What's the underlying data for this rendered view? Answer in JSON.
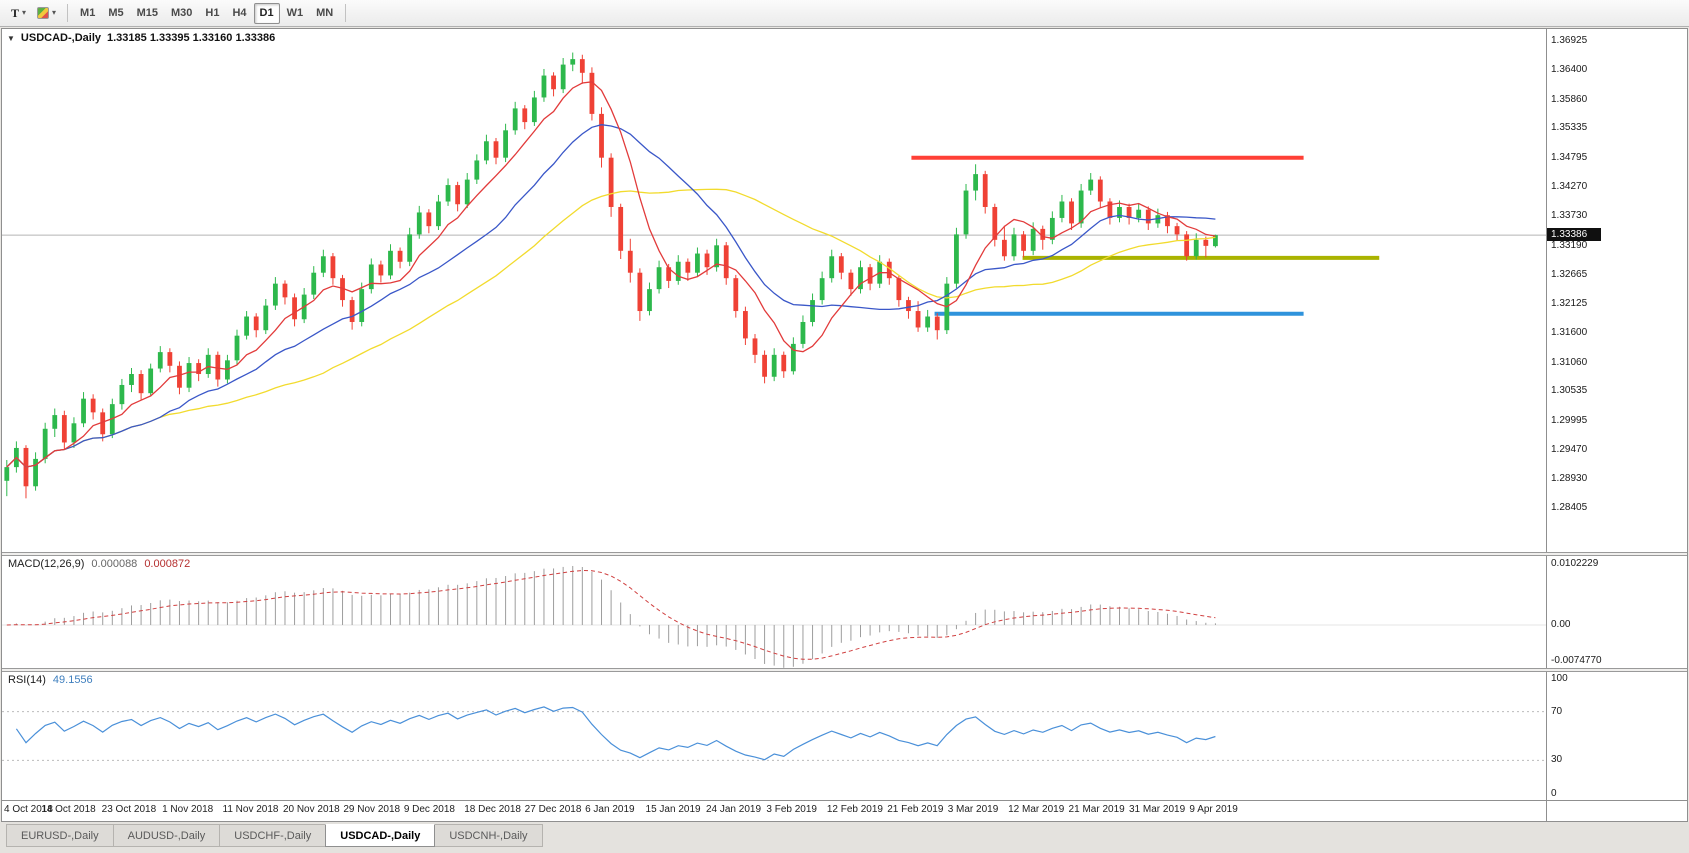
{
  "icons": {
    "caret": "▾",
    "collapse": "▼"
  },
  "toolbar": {
    "templates_glyph": "T",
    "timeframes": [
      "M1",
      "M5",
      "M15",
      "M30",
      "H1",
      "H4",
      "D1",
      "W1",
      "MN"
    ],
    "active_timeframe": "D1"
  },
  "chart": {
    "title": "USDCAD-,Daily",
    "ohlc": "1.33185 1.33395 1.33160 1.33386"
  },
  "price_axis": {
    "labels": [
      "1.36925",
      "1.36400",
      "1.35860",
      "1.35335",
      "1.34795",
      "1.34270",
      "1.33730",
      "1.33190",
      "1.32665",
      "1.32125",
      "1.31600",
      "1.31060",
      "1.30535",
      "1.29995",
      "1.29470",
      "1.28930",
      "1.28405"
    ],
    "current_price": "1.33386"
  },
  "macd": {
    "name": "MACD(12,26,9)",
    "value_main": "0.000088",
    "value_signal": "0.000872",
    "axis_max": "0.0102229",
    "axis_zero": "0.00",
    "axis_min": "-0.0074770",
    "scale": [
      -0.0078,
      0.0125
    ]
  },
  "rsi": {
    "name": "RSI(14)",
    "value": "49.1556",
    "axis_top": "100",
    "axis_70": "70",
    "axis_30": "30",
    "axis_bottom": "0",
    "levels": [
      70,
      30
    ],
    "period": 14
  },
  "date_axis": [
    "4 Oct 2018",
    "14 Oct 2018",
    "23 Oct 2018",
    "1 Nov 2018",
    "11 Nov 2018",
    "20 Nov 2018",
    "29 Nov 2018",
    "9 Dec 2018",
    "18 Dec 2018",
    "27 Dec 2018",
    "6 Jan 2019",
    "15 Jan 2019",
    "24 Jan 2019",
    "3 Feb 2019",
    "12 Feb 2019",
    "21 Feb 2019",
    "3 Mar 2019",
    "12 Mar 2019",
    "21 Mar 2019",
    "31 Mar 2019",
    "9 Apr 2019"
  ],
  "tabs": [
    {
      "label": "EURUSD-,Daily",
      "active": false
    },
    {
      "label": "AUDUSD-,Daily",
      "active": false
    },
    {
      "label": "USDCHF-,Daily",
      "active": false
    },
    {
      "label": "USDCAD-,Daily",
      "active": true
    },
    {
      "label": "USDCNH-,Daily",
      "active": false
    }
  ],
  "colors": {
    "bull": "#2DB84C",
    "bear": "#EF4135",
    "bid_line": "#b4b4b4",
    "macd_hist": "#9d9d9d",
    "macd_signal": "#D04040",
    "rsi_line": "#4A90D9",
    "rsi_level": "#bcbcbc"
  },
  "chart_data": {
    "type": "candlestick",
    "symbol": "USDCAD",
    "timeframe": "Daily",
    "current_price": 1.33386,
    "y_range": [
      1.276,
      1.3715
    ],
    "candle_span_frac": 0.789,
    "moving_averages": [
      {
        "name": "ma-slow-yellow",
        "period": 34,
        "color": "#F2DB2E"
      },
      {
        "name": "ma-medium-blue",
        "period": 17,
        "color": "#3A57C8"
      },
      {
        "name": "ma-fast-red",
        "period": 7,
        "color": "#E23B3B"
      }
    ],
    "lines": [
      {
        "name": "resistance-line",
        "price": 1.348,
        "color": "#FF4036",
        "width": 4,
        "x1": 0.589,
        "x2": 0.843
      },
      {
        "name": "mid-support-line",
        "price": 1.3297,
        "color": "#AAB300",
        "width": 4,
        "x1": 0.661,
        "x2": 0.892
      },
      {
        "name": "lower-support-line",
        "price": 1.3195,
        "color": "#2F93DC",
        "width": 4,
        "x1": 0.604,
        "x2": 0.843
      }
    ],
    "ohlc": [
      [
        1.289,
        1.2928,
        1.2862,
        1.2915
      ],
      [
        1.2915,
        1.2962,
        1.2905,
        1.295
      ],
      [
        1.295,
        1.2955,
        1.2858,
        1.288
      ],
      [
        1.288,
        1.2942,
        1.2872,
        1.293
      ],
      [
        1.293,
        1.2996,
        1.2922,
        1.2985
      ],
      [
        1.2985,
        1.3022,
        1.297,
        1.301
      ],
      [
        1.301,
        1.3018,
        1.2948,
        1.296
      ],
      [
        1.296,
        1.3006,
        1.295,
        1.2995
      ],
      [
        1.2995,
        1.3052,
        1.2988,
        1.304
      ],
      [
        1.304,
        1.3048,
        1.3002,
        1.3015
      ],
      [
        1.3015,
        1.3022,
        1.2962,
        1.2975
      ],
      [
        1.2975,
        1.304,
        1.2968,
        1.303
      ],
      [
        1.303,
        1.3076,
        1.302,
        1.3065
      ],
      [
        1.3065,
        1.3096,
        1.3052,
        1.3085
      ],
      [
        1.3085,
        1.3092,
        1.3038,
        1.305
      ],
      [
        1.305,
        1.3104,
        1.3044,
        1.3095
      ],
      [
        1.3095,
        1.3136,
        1.3088,
        1.3125
      ],
      [
        1.3125,
        1.3132,
        1.3088,
        1.31
      ],
      [
        1.31,
        1.3108,
        1.3048,
        1.306
      ],
      [
        1.306,
        1.3116,
        1.3052,
        1.3105
      ],
      [
        1.3105,
        1.3112,
        1.3072,
        1.3085
      ],
      [
        1.3085,
        1.3132,
        1.3078,
        1.312
      ],
      [
        1.312,
        1.3126,
        1.3062,
        1.3075
      ],
      [
        1.3075,
        1.312,
        1.3068,
        1.311
      ],
      [
        1.311,
        1.3166,
        1.3102,
        1.3155
      ],
      [
        1.3155,
        1.32,
        1.3148,
        1.319
      ],
      [
        1.319,
        1.3196,
        1.3152,
        1.3165
      ],
      [
        1.3165,
        1.3222,
        1.3158,
        1.321
      ],
      [
        1.321,
        1.3262,
        1.3202,
        1.325
      ],
      [
        1.325,
        1.3256,
        1.3212,
        1.3225
      ],
      [
        1.3225,
        1.3232,
        1.3172,
        1.3185
      ],
      [
        1.3185,
        1.3242,
        1.3178,
        1.323
      ],
      [
        1.323,
        1.3282,
        1.3222,
        1.327
      ],
      [
        1.327,
        1.3312,
        1.3262,
        1.33
      ],
      [
        1.33,
        1.3306,
        1.3248,
        1.326
      ],
      [
        1.326,
        1.3266,
        1.3208,
        1.322
      ],
      [
        1.322,
        1.3226,
        1.3166,
        1.318
      ],
      [
        1.318,
        1.3252,
        1.3172,
        1.324
      ],
      [
        1.324,
        1.3296,
        1.3232,
        1.3285
      ],
      [
        1.3285,
        1.3292,
        1.3252,
        1.3265
      ],
      [
        1.3265,
        1.3322,
        1.3258,
        1.331
      ],
      [
        1.331,
        1.3316,
        1.3278,
        1.329
      ],
      [
        1.329,
        1.3352,
        1.3282,
        1.334
      ],
      [
        1.334,
        1.3392,
        1.3332,
        1.338
      ],
      [
        1.338,
        1.3386,
        1.3342,
        1.3355
      ],
      [
        1.3355,
        1.3412,
        1.3348,
        1.34
      ],
      [
        1.34,
        1.3442,
        1.3392,
        1.343
      ],
      [
        1.343,
        1.3436,
        1.3382,
        1.3395
      ],
      [
        1.3395,
        1.3452,
        1.3388,
        1.344
      ],
      [
        1.344,
        1.3486,
        1.3432,
        1.3475
      ],
      [
        1.3475,
        1.3522,
        1.3468,
        1.351
      ],
      [
        1.351,
        1.3516,
        1.3468,
        1.348
      ],
      [
        1.348,
        1.3542,
        1.3472,
        1.353
      ],
      [
        1.353,
        1.3582,
        1.3522,
        1.357
      ],
      [
        1.357,
        1.3576,
        1.3532,
        1.3545
      ],
      [
        1.3545,
        1.3602,
        1.3538,
        1.359
      ],
      [
        1.359,
        1.3642,
        1.3582,
        1.363
      ],
      [
        1.363,
        1.3636,
        1.3592,
        1.3605
      ],
      [
        1.3605,
        1.3662,
        1.3598,
        1.365
      ],
      [
        1.365,
        1.3672,
        1.3638,
        1.366
      ],
      [
        1.366,
        1.3668,
        1.3615,
        1.3635
      ],
      [
        1.3635,
        1.3645,
        1.3548,
        1.356
      ],
      [
        1.356,
        1.3572,
        1.3462,
        1.348
      ],
      [
        1.348,
        1.3488,
        1.3372,
        1.339
      ],
      [
        1.339,
        1.3396,
        1.3295,
        1.331
      ],
      [
        1.331,
        1.3332,
        1.3252,
        1.327
      ],
      [
        1.327,
        1.3278,
        1.3182,
        1.32
      ],
      [
        1.32,
        1.3252,
        1.3192,
        1.324
      ],
      [
        1.324,
        1.3292,
        1.3232,
        1.328
      ],
      [
        1.328,
        1.3286,
        1.3242,
        1.3255
      ],
      [
        1.3255,
        1.3302,
        1.3248,
        1.329
      ],
      [
        1.329,
        1.3296,
        1.3255,
        1.327
      ],
      [
        1.327,
        1.3316,
        1.3262,
        1.3305
      ],
      [
        1.3305,
        1.3312,
        1.3266,
        1.328
      ],
      [
        1.328,
        1.3332,
        1.3272,
        1.332
      ],
      [
        1.332,
        1.3326,
        1.3248,
        1.326
      ],
      [
        1.326,
        1.3266,
        1.3188,
        1.32
      ],
      [
        1.32,
        1.3208,
        1.3138,
        1.315
      ],
      [
        1.315,
        1.3158,
        1.3105,
        1.312
      ],
      [
        1.312,
        1.3128,
        1.3068,
        1.308
      ],
      [
        1.308,
        1.3132,
        1.3072,
        1.312
      ],
      [
        1.312,
        1.3126,
        1.3078,
        1.309
      ],
      [
        1.309,
        1.3152,
        1.3084,
        1.314
      ],
      [
        1.314,
        1.3192,
        1.3132,
        1.318
      ],
      [
        1.318,
        1.3232,
        1.3172,
        1.322
      ],
      [
        1.322,
        1.3272,
        1.3212,
        1.326
      ],
      [
        1.326,
        1.3312,
        1.3252,
        1.33
      ],
      [
        1.33,
        1.3306,
        1.3258,
        1.327
      ],
      [
        1.327,
        1.3276,
        1.3228,
        1.324
      ],
      [
        1.324,
        1.3292,
        1.3232,
        1.328
      ],
      [
        1.328,
        1.3286,
        1.3238,
        1.325
      ],
      [
        1.325,
        1.3302,
        1.3242,
        1.329
      ],
      [
        1.329,
        1.3296,
        1.3248,
        1.326
      ],
      [
        1.326,
        1.3266,
        1.3208,
        1.322
      ],
      [
        1.322,
        1.3226,
        1.3186,
        1.32
      ],
      [
        1.32,
        1.3218,
        1.3162,
        1.317
      ],
      [
        1.317,
        1.3202,
        1.3162,
        1.319
      ],
      [
        1.319,
        1.3196,
        1.3148,
        1.3165
      ],
      [
        1.3165,
        1.3262,
        1.3158,
        1.325
      ],
      [
        1.325,
        1.3352,
        1.3242,
        1.334
      ],
      [
        1.334,
        1.3432,
        1.3332,
        1.342
      ],
      [
        1.342,
        1.3468,
        1.3402,
        1.345
      ],
      [
        1.345,
        1.3456,
        1.3378,
        1.339
      ],
      [
        1.339,
        1.3396,
        1.3318,
        1.333
      ],
      [
        1.333,
        1.3356,
        1.3292,
        1.33
      ],
      [
        1.33,
        1.3352,
        1.3292,
        1.334
      ],
      [
        1.334,
        1.3346,
        1.3298,
        1.331
      ],
      [
        1.331,
        1.3362,
        1.3302,
        1.335
      ],
      [
        1.335,
        1.3356,
        1.3312,
        1.333
      ],
      [
        1.333,
        1.3382,
        1.3322,
        1.337
      ],
      [
        1.337,
        1.3412,
        1.3362,
        1.34
      ],
      [
        1.34,
        1.3406,
        1.3348,
        1.336
      ],
      [
        1.336,
        1.3432,
        1.3352,
        1.342
      ],
      [
        1.342,
        1.3452,
        1.3412,
        1.344
      ],
      [
        1.344,
        1.3446,
        1.3388,
        1.34
      ],
      [
        1.34,
        1.3406,
        1.3358,
        1.337
      ],
      [
        1.337,
        1.3402,
        1.3362,
        1.339
      ],
      [
        1.339,
        1.3396,
        1.3358,
        1.337
      ],
      [
        1.337,
        1.3397,
        1.3362,
        1.3385
      ],
      [
        1.3385,
        1.3391,
        1.3348,
        1.336
      ],
      [
        1.336,
        1.3387,
        1.3352,
        1.3375
      ],
      [
        1.3375,
        1.3381,
        1.3342,
        1.3355
      ],
      [
        1.3355,
        1.3361,
        1.3328,
        1.334
      ],
      [
        1.334,
        1.3346,
        1.3292,
        1.33
      ],
      [
        1.33,
        1.3342,
        1.3294,
        1.333
      ],
      [
        1.333,
        1.3336,
        1.3298,
        1.3319
      ],
      [
        1.33185,
        1.33395,
        1.3316,
        1.33386
      ]
    ]
  }
}
